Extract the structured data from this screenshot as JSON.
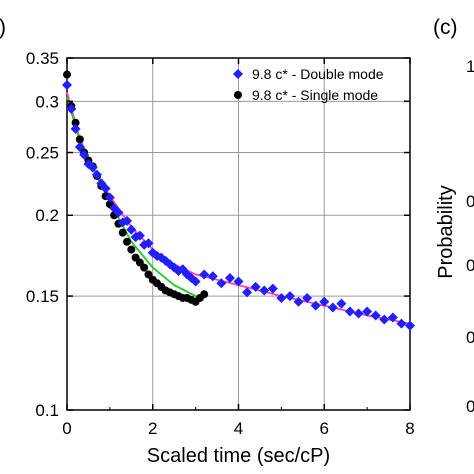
{
  "chart_data": {
    "type": "scatter",
    "title": "",
    "xlabel": "Scaled time (sec/cP)",
    "ylabel": "",
    "xlim": [
      0,
      8
    ],
    "ylim": [
      0.1,
      0.35
    ],
    "y_scale": "log",
    "grid": true,
    "legend_position": "top-right",
    "x_ticks": [
      "0",
      "2",
      "4",
      "6",
      "8"
    ],
    "x_tick_values": [
      0,
      2,
      4,
      6,
      8
    ],
    "y_ticks": [
      "0.1",
      "0.15",
      "0.2",
      "0.25",
      "0.3",
      "0.35"
    ],
    "y_tick_values": [
      0.1,
      0.15,
      0.2,
      0.25,
      0.3,
      0.35
    ],
    "series": [
      {
        "name": "9.8 c* - Double mode",
        "marker": "diamond",
        "color": "#1f1fff",
        "x": [
          0.0,
          0.1,
          0.2,
          0.3,
          0.4,
          0.5,
          0.6,
          0.7,
          0.8,
          0.9,
          1.0,
          1.1,
          1.2,
          1.3,
          1.4,
          1.5,
          1.6,
          1.7,
          1.8,
          1.9,
          2.0,
          2.1,
          2.2,
          2.3,
          2.4,
          2.5,
          2.6,
          2.7,
          2.8,
          2.9,
          3.0,
          3.2,
          3.4,
          3.6,
          3.8,
          4.0,
          4.2,
          4.4,
          4.6,
          4.8,
          5.0,
          5.2,
          5.4,
          5.6,
          5.8,
          6.0,
          6.2,
          6.4,
          6.6,
          6.8,
          7.0,
          7.2,
          7.4,
          7.6,
          7.8,
          8.0
        ],
        "y": [
          0.318,
          0.292,
          0.272,
          0.255,
          0.248,
          0.24,
          0.237,
          0.231,
          0.224,
          0.22,
          0.213,
          0.205,
          0.202,
          0.195,
          0.196,
          0.19,
          0.185,
          0.186,
          0.18,
          0.181,
          0.175,
          0.173,
          0.172,
          0.17,
          0.168,
          0.166,
          0.164,
          0.165,
          0.162,
          0.16,
          0.158,
          0.162,
          0.161,
          0.157,
          0.16,
          0.158,
          0.152,
          0.155,
          0.153,
          0.154,
          0.149,
          0.15,
          0.147,
          0.149,
          0.145,
          0.147,
          0.144,
          0.146,
          0.142,
          0.141,
          0.142,
          0.14,
          0.138,
          0.139,
          0.136,
          0.135
        ]
      },
      {
        "name": "9.8 c* - Single mode",
        "marker": "circle",
        "color": "#000000",
        "x": [
          0.0,
          0.1,
          0.2,
          0.3,
          0.4,
          0.5,
          0.6,
          0.7,
          0.8,
          0.9,
          1.0,
          1.1,
          1.2,
          1.3,
          1.4,
          1.5,
          1.6,
          1.7,
          1.8,
          1.9,
          2.0,
          2.1,
          2.2,
          2.3,
          2.4,
          2.5,
          2.6,
          2.7,
          2.8,
          2.9,
          3.0,
          3.1,
          3.2
        ],
        "y": [
          0.33,
          0.295,
          0.278,
          0.262,
          0.25,
          0.243,
          0.238,
          0.23,
          0.222,
          0.214,
          0.208,
          0.2,
          0.194,
          0.188,
          0.182,
          0.177,
          0.172,
          0.169,
          0.166,
          0.162,
          0.159,
          0.157,
          0.155,
          0.153,
          0.152,
          0.151,
          0.15,
          0.149,
          0.149,
          0.148,
          0.147,
          0.149,
          0.151
        ]
      }
    ],
    "fit_curves": [
      {
        "color": "#ff3fbf",
        "x": [
          0.0,
          0.3,
          0.6,
          1.0,
          1.5,
          2.0,
          2.5,
          3.0,
          3.5,
          4.0,
          5.0,
          6.0,
          7.0,
          8.0
        ],
        "y": [
          0.31,
          0.262,
          0.238,
          0.214,
          0.192,
          0.177,
          0.168,
          0.162,
          0.159,
          0.156,
          0.15,
          0.145,
          0.14,
          0.136
        ]
      },
      {
        "color": "#22cc22",
        "x": [
          0.0,
          0.3,
          0.6,
          1.0,
          1.5,
          2.0,
          2.5,
          3.0,
          3.2
        ],
        "y": [
          0.305,
          0.26,
          0.236,
          0.21,
          0.182,
          0.166,
          0.156,
          0.15,
          0.149
        ]
      }
    ]
  },
  "panel_labels": {
    "left": ")",
    "right": "(c)"
  },
  "adjacent_panel": {
    "ylabel": "Probability",
    "tick_fragments": [
      "1",
      "0",
      "0",
      "0",
      "0"
    ]
  }
}
